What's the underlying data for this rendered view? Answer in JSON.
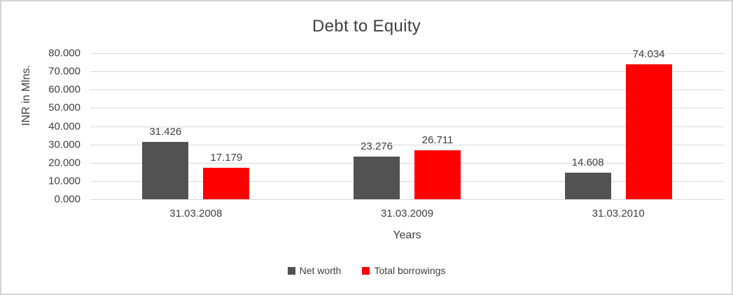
{
  "frame": {
    "background": "#ffffff",
    "border_color": "#d4d4d4"
  },
  "chart_data": {
    "type": "bar",
    "title": "Debt to Equity",
    "xlabel": "Years",
    "ylabel": "INR in Mlns.",
    "categories": [
      "31.03.2008",
      "31.03.2009",
      "31.03.2010"
    ],
    "series": [
      {
        "name": "Net worth",
        "color": "#525252",
        "values": [
          31.426,
          23.276,
          14.608
        ],
        "labels": [
          "31.426",
          "23.276",
          "14.608"
        ]
      },
      {
        "name": "Total borrowings",
        "color": "#ff0000",
        "values": [
          17.179,
          26.711,
          74.034
        ],
        "labels": [
          "17.179",
          "26.711",
          "74.034"
        ]
      }
    ],
    "ylim": [
      0,
      80
    ],
    "ytick_step": 10,
    "ytick_labels": [
      "0.000",
      "10.000",
      "20.000",
      "30.000",
      "40.000",
      "50.000",
      "60.000",
      "70.000",
      "80.000"
    ],
    "grid": true,
    "gridline_color": "#d9d9d9",
    "legend_position": "bottom",
    "text_color": "#404040"
  }
}
